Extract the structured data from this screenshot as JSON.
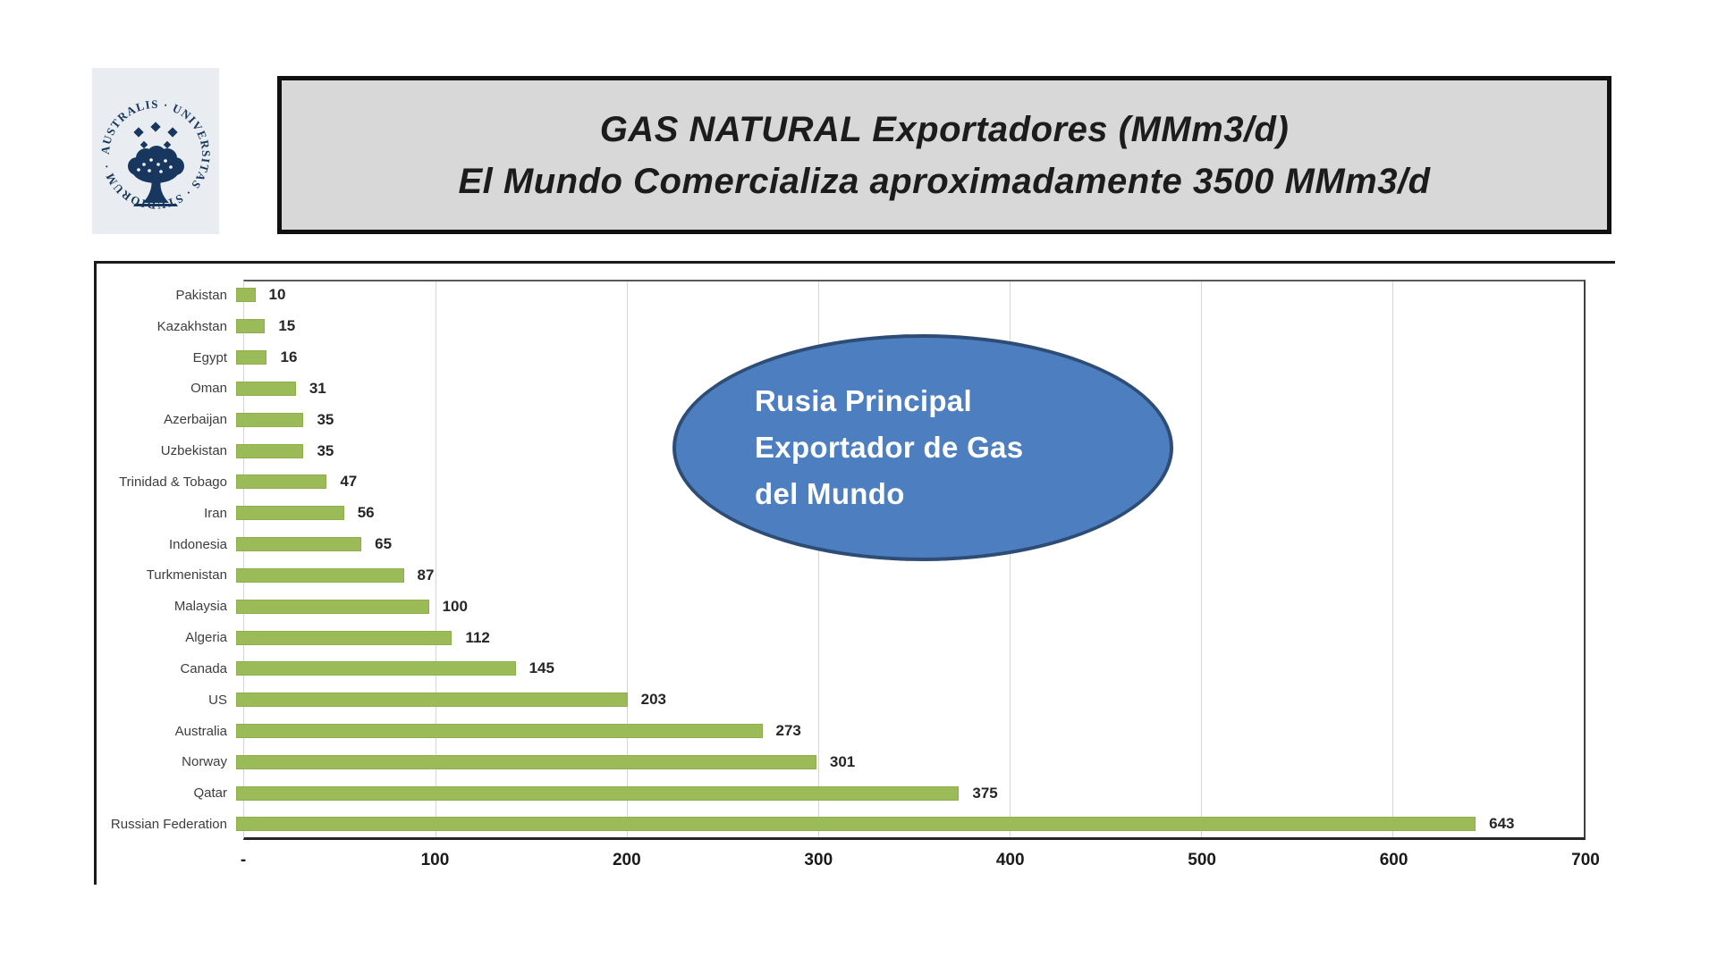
{
  "logo": {
    "inscription": "AUSTRALIS · UNIVERSITAS · STUDIORUM ·",
    "background": "#e9edf1",
    "seal_color": "#17375e"
  },
  "title_box": {
    "line1": "GAS NATURAL Exportadores (MMm3/d)",
    "line2": "El Mundo Comercializa aproximadamente 3500 MMm3/d"
  },
  "annotation": {
    "line1": "Rusia Principal",
    "line2": "Exportador de Gas",
    "line3": "del Mundo",
    "fill_color": "#4d7ebf",
    "border_color": "#2d4d76",
    "text_color": "#ffffff"
  },
  "chart_data": {
    "type": "bar",
    "orientation": "horizontal",
    "title": "GAS NATURAL Exportadores (MMm3/d)",
    "xlabel": "",
    "ylabel": "",
    "categories": [
      "Pakistan",
      "Kazakhstan",
      "Egypt",
      "Oman",
      "Azerbaijan",
      "Uzbekistan",
      "Trinidad & Tobago",
      "Iran",
      "Indonesia",
      "Turkmenistan",
      "Malaysia",
      "Algeria",
      "Canada",
      "US",
      "Australia",
      "Norway",
      "Qatar",
      "Russian Federation"
    ],
    "values": [
      10,
      15,
      16,
      31,
      35,
      35,
      47,
      56,
      65,
      87,
      100,
      112,
      145,
      203,
      273,
      301,
      375,
      643
    ],
    "xlim": [
      0,
      700
    ],
    "x_ticks": [
      0,
      100,
      200,
      300,
      400,
      500,
      600,
      700
    ],
    "x_tick_labels": [
      "-",
      "100",
      "200",
      "300",
      "400",
      "500",
      "600",
      "700"
    ],
    "bar_color": "#9bbb59",
    "grid": true,
    "value_labels": true,
    "legend": false
  }
}
